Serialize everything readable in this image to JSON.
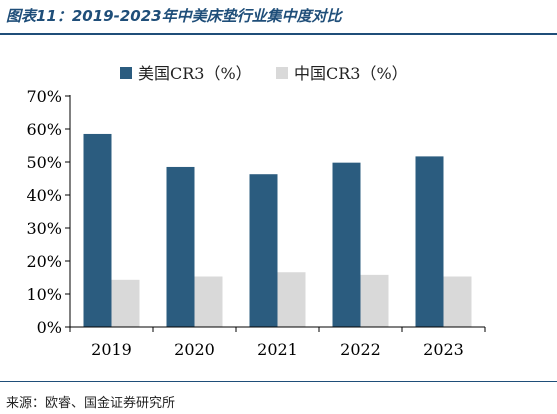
{
  "header": {
    "title": "图表11：2019-2023年中美床垫行业集中度对比"
  },
  "footer": {
    "source": "来源：欧睿、国金证券研究所"
  },
  "colors": {
    "series_us": "#2b5c7f",
    "series_cn": "#d9d9d9",
    "title": "#1f4e79"
  },
  "chart_data": {
    "type": "bar",
    "categories": [
      "2019",
      "2020",
      "2021",
      "2022",
      "2023"
    ],
    "series": [
      {
        "name": "美国CR3（%）",
        "values": [
          58.5,
          48.5,
          46.3,
          49.8,
          51.7
        ]
      },
      {
        "name": "中国CR3（%）",
        "values": [
          14.3,
          15.3,
          16.6,
          15.8,
          15.3
        ]
      }
    ],
    "ylim": [
      0,
      70
    ],
    "yticks": [
      "0%",
      "10%",
      "20%",
      "30%",
      "40%",
      "50%",
      "60%",
      "70%"
    ],
    "legend_position": "top",
    "grid": false
  }
}
